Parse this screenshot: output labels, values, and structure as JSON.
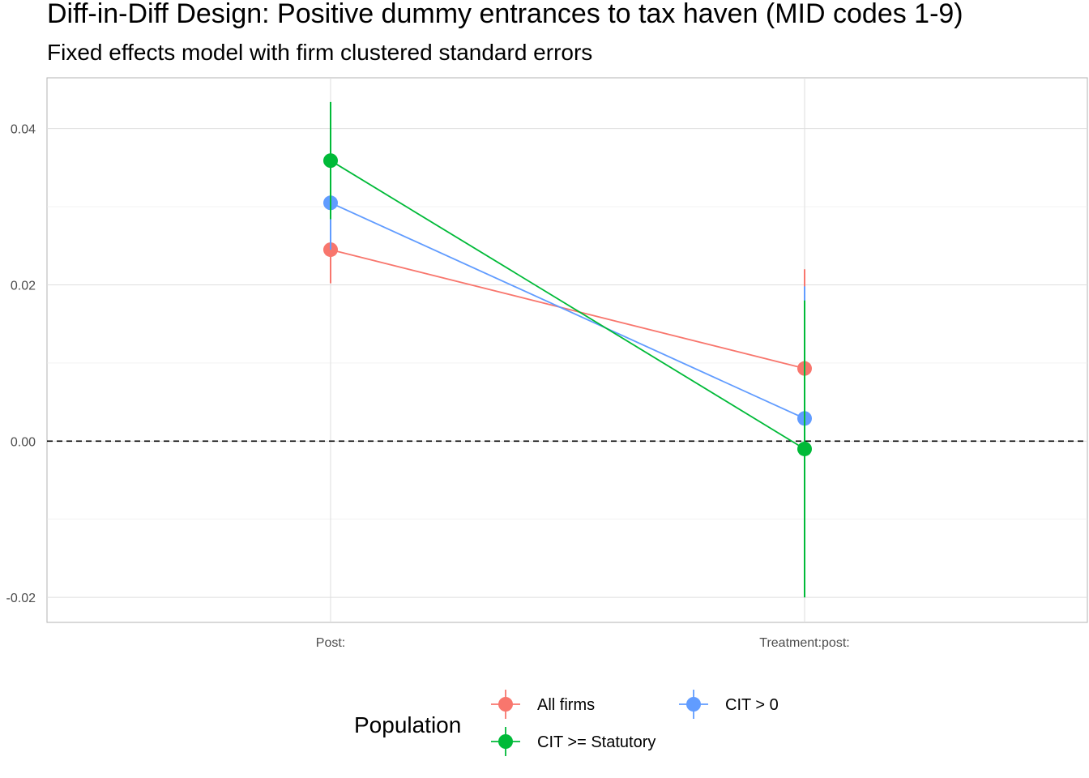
{
  "chart_data": {
    "type": "scatter",
    "title": "Diff-in-Diff Design: Positive dummy entrances to tax haven (MID codes 1-9)",
    "subtitle": "Fixed effects model with firm clustered standard errors",
    "categories": [
      "Post:",
      "Treatment:post:"
    ],
    "ylim": [
      -0.0232,
      0.0465
    ],
    "yticks": [
      -0.02,
      0.0,
      0.02,
      0.04
    ],
    "ytick_labels": [
      "-0.02",
      "0.00",
      "0.02",
      "0.04"
    ],
    "reference_line": {
      "y": 0.0,
      "style": "dashed"
    },
    "grid": true,
    "legend": {
      "title": "Population",
      "placement": "bottom"
    },
    "series": [
      {
        "name": "All firms",
        "color": "#F8766D",
        "values": [
          0.0245,
          0.0093
        ],
        "lower": [
          0.0202,
          -0.0035
        ],
        "upper": [
          0.0288,
          0.022
        ]
      },
      {
        "name": "CIT > 0",
        "color": "#619CFF",
        "values": [
          0.0305,
          0.0029
        ],
        "lower": [
          0.0245,
          -0.014
        ],
        "upper": [
          0.0365,
          0.0198
        ]
      },
      {
        "name": "CIT >= Statutory",
        "color": "#00BA38",
        "values": [
          0.0359,
          -0.001
        ],
        "lower": [
          0.0284,
          -0.02
        ],
        "upper": [
          0.0434,
          0.018
        ]
      }
    ]
  }
}
